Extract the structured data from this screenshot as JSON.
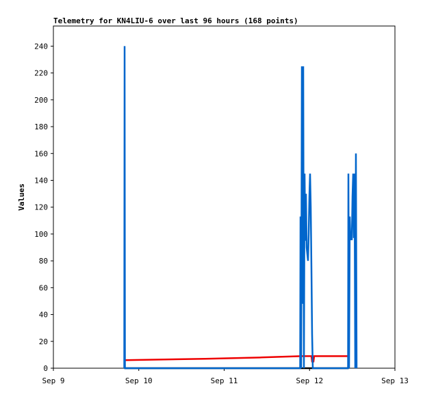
{
  "chart_data": {
    "type": "line",
    "title": "Telemetry for KN4LIU-6 over last 96 hours (168 points)",
    "ylabel": "Values",
    "xlim": [
      0,
      4
    ],
    "xticks": [
      {
        "value": 0,
        "label": "Sep 9"
      },
      {
        "value": 1,
        "label": "Sep 10"
      },
      {
        "value": 2,
        "label": "Sep 11"
      },
      {
        "value": 3,
        "label": "Sep 12"
      },
      {
        "value": 4,
        "label": "Sep 13"
      }
    ],
    "ylim": [
      0,
      255
    ],
    "yticks": [
      0,
      20,
      40,
      60,
      80,
      100,
      120,
      140,
      160,
      180,
      200,
      220,
      240
    ],
    "series": [
      {
        "color": "#000000",
        "x": [
          0.834,
          3.455
        ],
        "values": [
          0,
          0
        ]
      },
      {
        "color": "#ee0000",
        "x": [
          0.834,
          1.78,
          2.42,
          2.902,
          3.022,
          3.03,
          3.046,
          3.054,
          3.455
        ],
        "values": [
          6,
          7,
          8,
          9,
          9,
          5,
          5,
          9,
          9
        ]
      },
      {
        "color": "#0066cc",
        "x": [
          0.83,
          0.834,
          0.838,
          2.89,
          2.894,
          2.902,
          2.91,
          2.918,
          2.926,
          2.934,
          2.942,
          2.95,
          2.958,
          2.966,
          2.974,
          2.982,
          2.99,
          2.998,
          3.006,
          3.014,
          3.022,
          3.03,
          3.038,
          3.451,
          3.455,
          3.463,
          3.471,
          3.479,
          3.487,
          3.495,
          3.503,
          3.511,
          3.519,
          3.527,
          3.535,
          3.543,
          3.551
        ],
        "values": [
          0,
          240,
          0,
          0,
          113,
          0,
          225,
          48,
          225,
          0,
          145,
          95,
          130,
          90,
          85,
          80,
          100,
          128,
          145,
          120,
          75,
          25,
          0,
          0,
          145,
          0,
          113,
          96,
          96,
          96,
          128,
          145,
          97,
          145,
          0,
          160,
          0
        ]
      }
    ]
  }
}
